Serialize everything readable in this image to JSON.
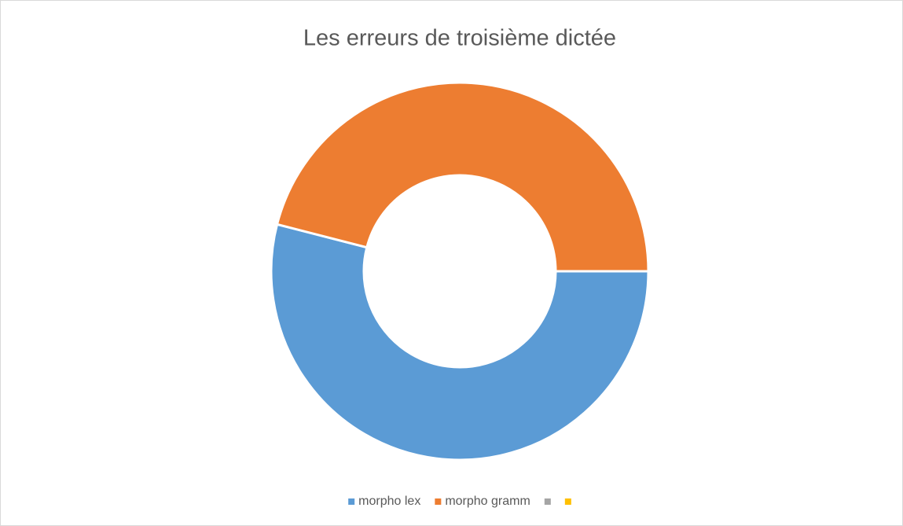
{
  "chart_data": {
    "type": "donut",
    "title": "Les erreurs de troisième dictée",
    "categories": [
      "morpho lex",
      "morpho gramm",
      null,
      null
    ],
    "values": [
      54,
      46,
      0,
      0
    ],
    "colors": [
      "#5b9bd5",
      "#ed7d31",
      "#a5a5a5",
      "#ffc000"
    ],
    "start_angle": 90,
    "legend": "bottom"
  }
}
